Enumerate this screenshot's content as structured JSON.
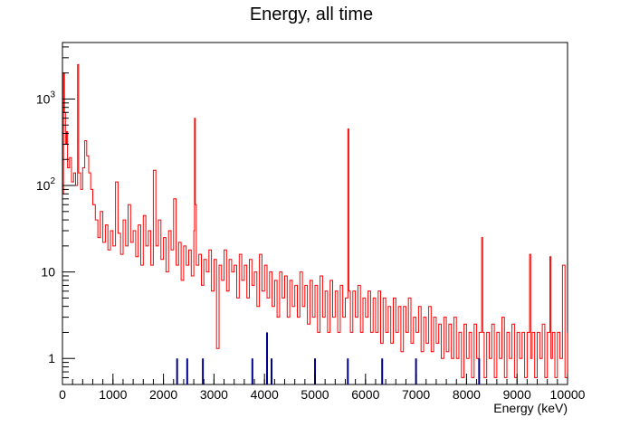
{
  "chart_data": {
    "type": "line",
    "title": "Energy, all time",
    "xlabel": "Energy (keV)",
    "ylabel": "",
    "xlim": [
      0,
      10000
    ],
    "ylim": [
      0.5,
      4500
    ],
    "yscale": "log",
    "grid": false,
    "x_ticks": [
      {
        "value": 0,
        "label": "0"
      },
      {
        "value": 1000,
        "label": "1000"
      },
      {
        "value": 2000,
        "label": "2000"
      },
      {
        "value": 3000,
        "label": "3000"
      },
      {
        "value": 4000,
        "label": "4000"
      },
      {
        "value": 5000,
        "label": "5000"
      },
      {
        "value": 6000,
        "label": "6000"
      },
      {
        "value": 7000,
        "label": "7000"
      },
      {
        "value": 8000,
        "label": "8000"
      },
      {
        "value": 9000,
        "label": "9000"
      },
      {
        "value": 10000,
        "label": "10000"
      }
    ],
    "y_ticks": [
      {
        "value": 1,
        "base": "1",
        "exp": ""
      },
      {
        "value": 10,
        "base": "10",
        "exp": ""
      },
      {
        "value": 100,
        "base": "10",
        "exp": "2"
      },
      {
        "value": 1000,
        "base": "10",
        "exp": "3"
      }
    ],
    "series": [
      {
        "color": "#ff0000",
        "points": [
          [
            0,
            80
          ],
          [
            20,
            2000
          ],
          [
            40,
            700
          ],
          [
            60,
            300
          ],
          [
            80,
            420
          ],
          [
            100,
            160
          ],
          [
            140,
            210
          ],
          [
            180,
            110
          ],
          [
            220,
            140
          ],
          [
            260,
            100
          ],
          [
            300,
            2500
          ],
          [
            320,
            140
          ],
          [
            360,
            90
          ],
          [
            400,
            160
          ],
          [
            440,
            330
          ],
          [
            480,
            220
          ],
          [
            520,
            140
          ],
          [
            560,
            90
          ],
          [
            600,
            60
          ],
          [
            650,
            40
          ],
          [
            700,
            25
          ],
          [
            750,
            50
          ],
          [
            800,
            22
          ],
          [
            850,
            35
          ],
          [
            900,
            18
          ],
          [
            950,
            30
          ],
          [
            1000,
            20
          ],
          [
            1050,
            110
          ],
          [
            1100,
            28
          ],
          [
            1150,
            16
          ],
          [
            1200,
            40
          ],
          [
            1250,
            20
          ],
          [
            1300,
            60
          ],
          [
            1350,
            22
          ],
          [
            1400,
            30
          ],
          [
            1450,
            15
          ],
          [
            1500,
            35
          ],
          [
            1550,
            12
          ],
          [
            1600,
            45
          ],
          [
            1650,
            20
          ],
          [
            1700,
            30
          ],
          [
            1750,
            12
          ],
          [
            1800,
            150
          ],
          [
            1850,
            20
          ],
          [
            1900,
            40
          ],
          [
            1950,
            14
          ],
          [
            2000,
            25
          ],
          [
            2050,
            10
          ],
          [
            2100,
            30
          ],
          [
            2150,
            18
          ],
          [
            2200,
            70
          ],
          [
            2250,
            12
          ],
          [
            2300,
            22
          ],
          [
            2350,
            8
          ],
          [
            2400,
            20
          ],
          [
            2450,
            12
          ],
          [
            2500,
            18
          ],
          [
            2550,
            9
          ],
          [
            2600,
            30
          ],
          [
            2614,
            600
          ],
          [
            2630,
            60
          ],
          [
            2650,
            12
          ],
          [
            2700,
            16
          ],
          [
            2750,
            7
          ],
          [
            2800,
            14
          ],
          [
            2850,
            10
          ],
          [
            2900,
            18
          ],
          [
            2950,
            6
          ],
          [
            3000,
            14
          ],
          [
            3050,
            1.3
          ],
          [
            3100,
            12
          ],
          [
            3150,
            8
          ],
          [
            3200,
            18
          ],
          [
            3250,
            6
          ],
          [
            3300,
            14
          ],
          [
            3350,
            10
          ],
          [
            3400,
            12
          ],
          [
            3450,
            5
          ],
          [
            3500,
            16
          ],
          [
            3550,
            8
          ],
          [
            3600,
            12
          ],
          [
            3650,
            5
          ],
          [
            3700,
            14
          ],
          [
            3750,
            7
          ],
          [
            3800,
            10
          ],
          [
            3850,
            4
          ],
          [
            3900,
            16
          ],
          [
            3950,
            6
          ],
          [
            4000,
            12
          ],
          [
            4050,
            5
          ],
          [
            4100,
            10
          ],
          [
            4150,
            4
          ],
          [
            4200,
            8
          ],
          [
            4250,
            3
          ],
          [
            4300,
            10
          ],
          [
            4350,
            5
          ],
          [
            4400,
            9
          ],
          [
            4450,
            3
          ],
          [
            4500,
            8
          ],
          [
            4550,
            4
          ],
          [
            4600,
            7
          ],
          [
            4650,
            3
          ],
          [
            4700,
            10
          ],
          [
            4750,
            4
          ],
          [
            4800,
            7
          ],
          [
            4850,
            2.5
          ],
          [
            4900,
            8
          ],
          [
            4950,
            3
          ],
          [
            5000,
            7
          ],
          [
            5050,
            2
          ],
          [
            5100,
            9
          ],
          [
            5150,
            3
          ],
          [
            5200,
            6
          ],
          [
            5250,
            2
          ],
          [
            5300,
            8
          ],
          [
            5350,
            3
          ],
          [
            5400,
            6
          ],
          [
            5450,
            2
          ],
          [
            5500,
            7
          ],
          [
            5550,
            3
          ],
          [
            5600,
            5
          ],
          [
            5650,
            450
          ],
          [
            5670,
            6
          ],
          [
            5700,
            2
          ],
          [
            5750,
            6
          ],
          [
            5800,
            3
          ],
          [
            5850,
            7
          ],
          [
            5900,
            2
          ],
          [
            5950,
            5
          ],
          [
            6000,
            3
          ],
          [
            6050,
            6
          ],
          [
            6100,
            2
          ],
          [
            6150,
            5
          ],
          [
            6200,
            2
          ],
          [
            6250,
            6
          ],
          [
            6300,
            1.5
          ],
          [
            6350,
            5
          ],
          [
            6400,
            2
          ],
          [
            6450,
            4
          ],
          [
            6500,
            1.5
          ],
          [
            6550,
            5
          ],
          [
            6600,
            2
          ],
          [
            6650,
            4
          ],
          [
            6700,
            1.2
          ],
          [
            6750,
            4
          ],
          [
            6800,
            2
          ],
          [
            6850,
            5
          ],
          [
            6900,
            1.5
          ],
          [
            6950,
            3
          ],
          [
            7000,
            2
          ],
          [
            7050,
            4
          ],
          [
            7100,
            1.2
          ],
          [
            7150,
            3
          ],
          [
            7200,
            1.5
          ],
          [
            7250,
            4
          ],
          [
            7300,
            1.2
          ],
          [
            7350,
            3
          ],
          [
            7400,
            1.5
          ],
          [
            7450,
            2.5
          ],
          [
            7500,
            1
          ],
          [
            7550,
            3
          ],
          [
            7600,
            1.2
          ],
          [
            7650,
            2.5
          ],
          [
            7700,
            1
          ],
          [
            7750,
            3
          ],
          [
            7800,
            1
          ],
          [
            7850,
            2
          ],
          [
            7900,
            0.6
          ],
          [
            7950,
            2.5
          ],
          [
            8000,
            1
          ],
          [
            8050,
            2
          ],
          [
            8100,
            0.6
          ],
          [
            8150,
            2.5
          ],
          [
            8200,
            1
          ],
          [
            8250,
            2
          ],
          [
            8300,
            25
          ],
          [
            8320,
            2
          ],
          [
            8350,
            0.6
          ],
          [
            8400,
            2
          ],
          [
            8450,
            1
          ],
          [
            8500,
            2.5
          ],
          [
            8550,
            0.6
          ],
          [
            8600,
            2
          ],
          [
            8650,
            1
          ],
          [
            8700,
            3
          ],
          [
            8750,
            0.6
          ],
          [
            8800,
            2
          ],
          [
            8850,
            1
          ],
          [
            8900,
            2.5
          ],
          [
            8950,
            0.6
          ],
          [
            9000,
            2
          ],
          [
            9050,
            1
          ],
          [
            9100,
            2
          ],
          [
            9150,
            0.6
          ],
          [
            9200,
            2
          ],
          [
            9250,
            16
          ],
          [
            9270,
            1
          ],
          [
            9300,
            2
          ],
          [
            9350,
            0.6
          ],
          [
            9400,
            2
          ],
          [
            9450,
            1
          ],
          [
            9500,
            2.5
          ],
          [
            9550,
            0.6
          ],
          [
            9600,
            2
          ],
          [
            9650,
            15
          ],
          [
            9670,
            1
          ],
          [
            9700,
            2
          ],
          [
            9750,
            0.6
          ],
          [
            9800,
            2
          ],
          [
            9850,
            1
          ],
          [
            9900,
            12
          ],
          [
            9950,
            0.6
          ],
          [
            10000,
            2
          ]
        ]
      },
      {
        "color": "#00008b",
        "style": "bars",
        "points": [
          [
            2270,
            1
          ],
          [
            2470,
            1
          ],
          [
            2780,
            1
          ],
          [
            3760,
            1
          ],
          [
            4050,
            2
          ],
          [
            4140,
            1
          ],
          [
            5000,
            1
          ],
          [
            5650,
            1
          ],
          [
            6330,
            1
          ],
          [
            7000,
            1
          ],
          [
            8250,
            1
          ]
        ]
      }
    ]
  }
}
